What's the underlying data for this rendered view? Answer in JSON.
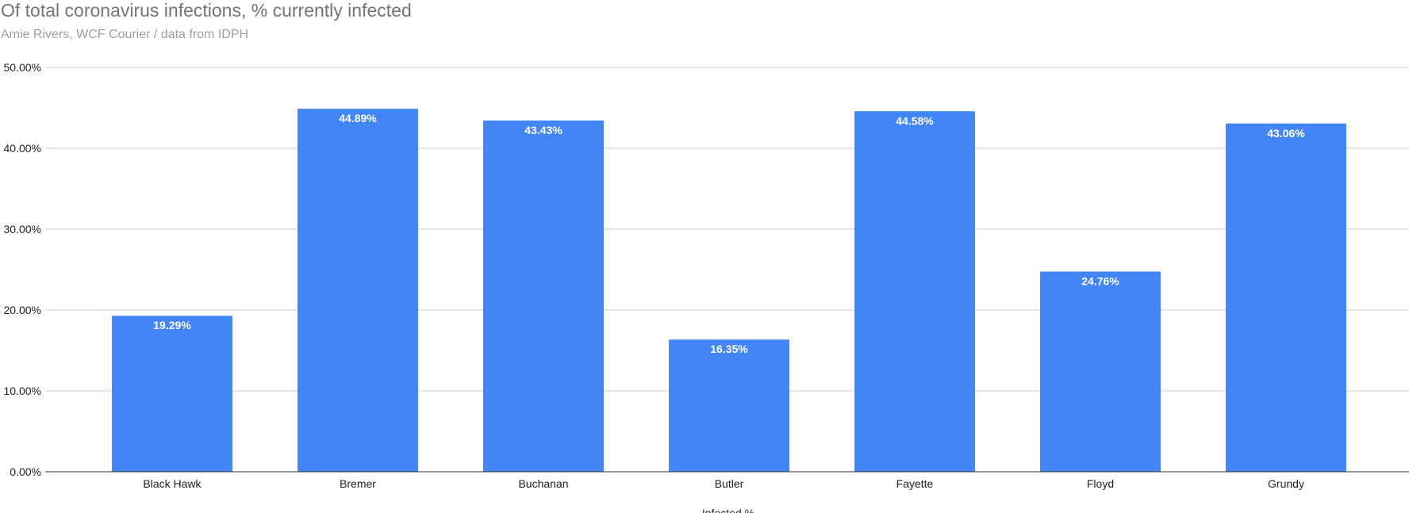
{
  "chart_data": {
    "type": "bar",
    "title": "Of total coronavirus infections, % currently infected",
    "subtitle": "Amie Rivers, WCF Courier / data from IDPH",
    "xlabel": "Infected %",
    "ylabel": "",
    "categories": [
      "Black Hawk",
      "Bremer",
      "Buchanan",
      "Butler",
      "Fayette",
      "Floyd",
      "Grundy"
    ],
    "values": [
      19.29,
      44.89,
      43.43,
      16.35,
      44.58,
      24.76,
      43.06
    ],
    "data_labels": [
      "19.29%",
      "44.89%",
      "43.43%",
      "16.35%",
      "44.58%",
      "24.76%",
      "43.06%"
    ],
    "ylim": [
      0,
      50
    ],
    "yticks": [
      0,
      10,
      20,
      30,
      40,
      50
    ],
    "ytick_labels": [
      "0.00%",
      "10.00%",
      "20.00%",
      "30.00%",
      "40.00%",
      "50.00%"
    ],
    "grid": true,
    "legend": "none",
    "colors": {
      "bar": "#4285f4",
      "grid": "#cccccc",
      "axis": "#333333"
    }
  }
}
